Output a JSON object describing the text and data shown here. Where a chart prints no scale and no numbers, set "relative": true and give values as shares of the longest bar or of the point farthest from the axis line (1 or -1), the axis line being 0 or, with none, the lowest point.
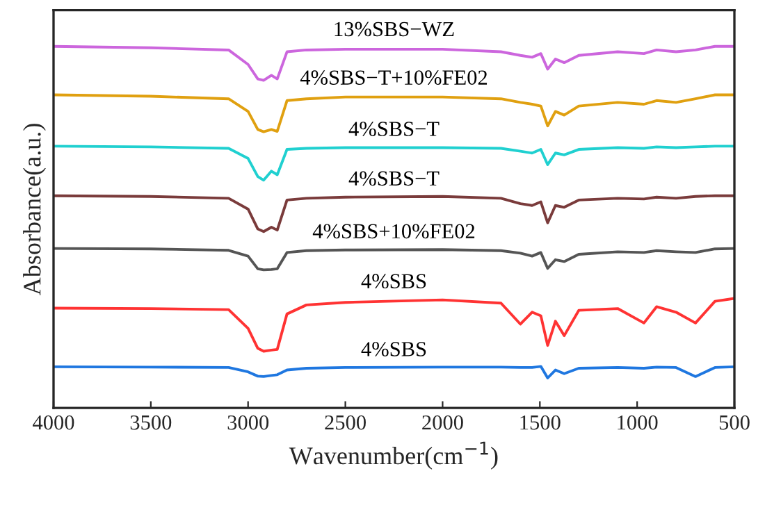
{
  "chart_data": {
    "type": "line",
    "relative": true,
    "xlabel": "Wavenumber(cm$^{−1}$)",
    "ylabel": "Absorbance(a.u.)",
    "xlim": [
      4000,
      500
    ],
    "xticks": [
      4000,
      3500,
      3000,
      2500,
      2000,
      1500,
      1000,
      500
    ],
    "legend": false,
    "grid": false,
    "x": [
      4000,
      3500,
      3100,
      3000,
      2950,
      2920,
      2880,
      2850,
      2800,
      2700,
      2500,
      2000,
      1700,
      1600,
      1540,
      1495,
      1460,
      1420,
      1375,
      1300,
      1100,
      965,
      900,
      800,
      700,
      600,
      500
    ],
    "series": [
      {
        "name": "13%SBS−WZ",
        "color": "#cc66dd",
        "values": [
          1.0,
          0.996,
          0.99,
          0.95,
          0.91,
          0.906,
          0.92,
          0.91,
          0.985,
          0.99,
          0.992,
          0.992,
          0.985,
          0.975,
          0.97,
          0.98,
          0.937,
          0.965,
          0.955,
          0.975,
          0.985,
          0.98,
          0.99,
          0.985,
          0.99,
          1.0,
          1.0
        ]
      },
      {
        "name": "4%SBS−T+10%FE02",
        "color": "#e0a010",
        "values": [
          0.866,
          0.862,
          0.855,
          0.82,
          0.77,
          0.764,
          0.77,
          0.765,
          0.85,
          0.855,
          0.86,
          0.86,
          0.855,
          0.845,
          0.84,
          0.835,
          0.78,
          0.82,
          0.81,
          0.835,
          0.845,
          0.84,
          0.85,
          0.845,
          0.855,
          0.866,
          0.866
        ]
      },
      {
        "name": "4%SBS−T",
        "color": "#20d0d0",
        "values": [
          0.724,
          0.722,
          0.718,
          0.69,
          0.64,
          0.63,
          0.655,
          0.645,
          0.715,
          0.718,
          0.72,
          0.72,
          0.718,
          0.71,
          0.705,
          0.715,
          0.673,
          0.705,
          0.7,
          0.715,
          0.72,
          0.718,
          0.722,
          0.72,
          0.722,
          0.724,
          0.724
        ]
      },
      {
        "name": "4%SBS−T",
        "color": "#7a3b3b",
        "values": [
          0.587,
          0.585,
          0.58,
          0.55,
          0.495,
          0.488,
          0.5,
          0.492,
          0.575,
          0.58,
          0.583,
          0.585,
          0.58,
          0.565,
          0.56,
          0.57,
          0.512,
          0.56,
          0.555,
          0.575,
          0.58,
          0.578,
          0.583,
          0.58,
          0.585,
          0.587,
          0.587
        ]
      },
      {
        "name": "4%SBS+10%FE02",
        "color": "#555555",
        "values": [
          0.441,
          0.44,
          0.436,
          0.42,
          0.385,
          0.382,
          0.383,
          0.385,
          0.43,
          0.435,
          0.437,
          0.438,
          0.435,
          0.428,
          0.42,
          0.43,
          0.386,
          0.41,
          0.405,
          0.425,
          0.432,
          0.43,
          0.435,
          0.432,
          0.43,
          0.44,
          0.441
        ]
      },
      {
        "name": "4%SBS",
        "color": "#ff3333",
        "values": [
          0.276,
          0.275,
          0.272,
          0.22,
          0.165,
          0.157,
          0.16,
          0.162,
          0.26,
          0.285,
          0.292,
          0.299,
          0.29,
          0.232,
          0.265,
          0.255,
          0.173,
          0.24,
          0.2,
          0.27,
          0.275,
          0.235,
          0.28,
          0.265,
          0.235,
          0.295,
          0.303
        ]
      },
      {
        "name": "4%SBS",
        "color": "#1f77e0",
        "values": [
          0.114,
          0.113,
          0.112,
          0.1,
          0.088,
          0.087,
          0.09,
          0.092,
          0.105,
          0.11,
          0.112,
          0.113,
          0.113,
          0.112,
          0.112,
          0.115,
          0.083,
          0.105,
          0.095,
          0.11,
          0.112,
          0.11,
          0.113,
          0.112,
          0.087,
          0.112,
          0.114
        ]
      }
    ]
  }
}
